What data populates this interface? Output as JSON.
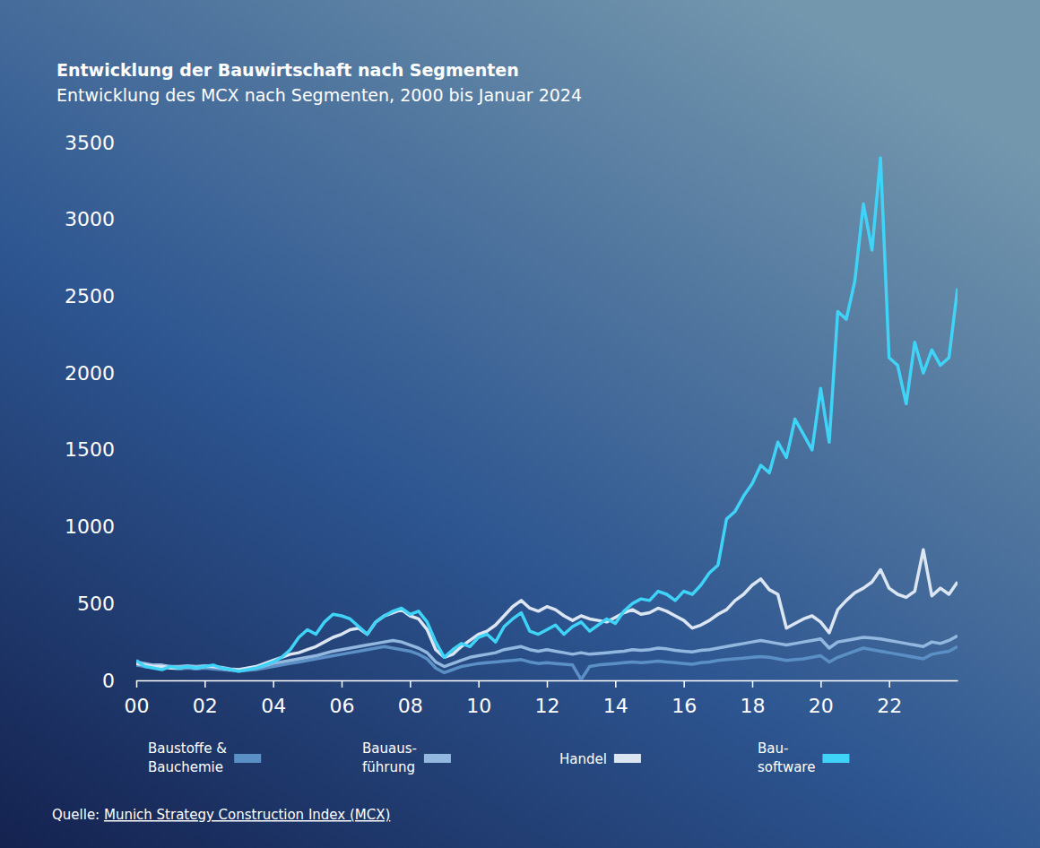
{
  "chart_data": {
    "type": "line",
    "title": "Entwicklung der Bauwirtschaft nach Segmenten",
    "subtitle": "Entwicklung des MCX nach Segmenten, 2000 bis Januar 2024",
    "source": "Quelle: Munich Strategy Construction Index (MCX)",
    "x": [
      2000,
      2000.25,
      2000.5,
      2000.75,
      2001,
      2001.25,
      2001.5,
      2001.75,
      2002,
      2002.25,
      2002.5,
      2002.75,
      2003,
      2003.25,
      2003.5,
      2003.75,
      2004,
      2004.25,
      2004.5,
      2004.75,
      2005,
      2005.25,
      2005.5,
      2005.75,
      2006,
      2006.25,
      2006.5,
      2006.75,
      2007,
      2007.25,
      2007.5,
      2007.75,
      2008,
      2008.25,
      2008.5,
      2008.75,
      2009,
      2009.25,
      2009.5,
      2009.75,
      2010,
      2010.25,
      2010.5,
      2010.75,
      2011,
      2011.25,
      2011.5,
      2011.75,
      2012,
      2012.25,
      2012.5,
      2012.75,
      2013,
      2013.25,
      2013.5,
      2013.75,
      2014,
      2014.25,
      2014.5,
      2014.75,
      2015,
      2015.25,
      2015.5,
      2015.75,
      2016,
      2016.25,
      2016.5,
      2016.75,
      2017,
      2017.25,
      2017.5,
      2017.75,
      2018,
      2018.25,
      2018.5,
      2018.75,
      2019,
      2019.25,
      2019.5,
      2019.75,
      2020,
      2020.25,
      2020.5,
      2020.75,
      2021,
      2021.25,
      2021.5,
      2021.75,
      2022,
      2022.25,
      2022.5,
      2022.75,
      2023,
      2023.25,
      2023.5,
      2023.75,
      2024
    ],
    "xlim": [
      2000,
      2024
    ],
    "xticks": [
      {
        "value": 2000,
        "label": "00"
      },
      {
        "value": 2002,
        "label": "02"
      },
      {
        "value": 2004,
        "label": "04"
      },
      {
        "value": 2006,
        "label": "06"
      },
      {
        "value": 2008,
        "label": "08"
      },
      {
        "value": 2010,
        "label": "10"
      },
      {
        "value": 2012,
        "label": "12"
      },
      {
        "value": 2014,
        "label": "14"
      },
      {
        "value": 2016,
        "label": "16"
      },
      {
        "value": 2018,
        "label": "18"
      },
      {
        "value": 2020,
        "label": "20"
      },
      {
        "value": 2022,
        "label": "22"
      }
    ],
    "ylim": [
      0,
      3500
    ],
    "yticks": [
      0,
      500,
      1000,
      1500,
      2000,
      2500,
      3000,
      3500
    ],
    "grid": false,
    "legend": "bottom",
    "series": [
      {
        "name": "Baustoffe &\nBauchemie",
        "color": "#5b90c6",
        "values": [
          100,
          90,
          85,
          80,
          80,
          75,
          80,
          75,
          80,
          75,
          70,
          65,
          60,
          65,
          70,
          80,
          90,
          100,
          110,
          120,
          130,
          140,
          150,
          160,
          170,
          180,
          190,
          200,
          210,
          220,
          210,
          200,
          190,
          170,
          140,
          80,
          50,
          70,
          90,
          100,
          110,
          115,
          120,
          125,
          130,
          135,
          120,
          110,
          115,
          110,
          105,
          100,
          5,
          90,
          100,
          105,
          110,
          115,
          120,
          115,
          120,
          125,
          120,
          115,
          110,
          105,
          115,
          120,
          130,
          135,
          140,
          145,
          150,
          155,
          150,
          140,
          130,
          135,
          140,
          150,
          160,
          120,
          150,
          170,
          190,
          210,
          200,
          190,
          180,
          170,
          160,
          150,
          140,
          170,
          180,
          190,
          220
        ]
      },
      {
        "name": "Bauaus-\nführung",
        "color": "#92b8df",
        "values": [
          120,
          110,
          100,
          100,
          90,
          90,
          95,
          90,
          95,
          90,
          85,
          75,
          70,
          75,
          80,
          95,
          110,
          120,
          130,
          140,
          150,
          160,
          175,
          190,
          200,
          210,
          220,
          230,
          240,
          250,
          260,
          250,
          230,
          210,
          180,
          120,
          90,
          110,
          130,
          150,
          160,
          170,
          180,
          200,
          210,
          220,
          200,
          190,
          200,
          190,
          180,
          170,
          180,
          170,
          175,
          180,
          185,
          190,
          200,
          195,
          200,
          210,
          205,
          195,
          190,
          185,
          195,
          200,
          210,
          220,
          230,
          240,
          250,
          260,
          250,
          240,
          230,
          240,
          250,
          260,
          270,
          210,
          250,
          260,
          270,
          280,
          275,
          270,
          260,
          250,
          240,
          230,
          220,
          250,
          240,
          260,
          290
        ]
      },
      {
        "name": "Handel",
        "color": "#dce6f3",
        "values": [
          110,
          100,
          90,
          90,
          80,
          80,
          90,
          80,
          90,
          90,
          80,
          70,
          70,
          80,
          90,
          110,
          130,
          150,
          170,
          180,
          200,
          220,
          250,
          280,
          300,
          330,
          340,
          300,
          380,
          420,
          440,
          460,
          420,
          400,
          330,
          200,
          150,
          170,
          220,
          260,
          300,
          320,
          360,
          420,
          480,
          520,
          470,
          450,
          480,
          460,
          420,
          390,
          420,
          400,
          390,
          380,
          410,
          440,
          460,
          430,
          440,
          470,
          450,
          420,
          390,
          340,
          360,
          390,
          430,
          460,
          520,
          560,
          620,
          660,
          590,
          560,
          340,
          370,
          400,
          420,
          380,
          310,
          460,
          520,
          570,
          600,
          640,
          720,
          600,
          560,
          540,
          580,
          850,
          550,
          600,
          560,
          640
        ]
      },
      {
        "name": "Bau-\nsoftware",
        "color": "#3fd3f7",
        "values": [
          130,
          90,
          80,
          70,
          90,
          80,
          90,
          80,
          90,
          100,
          80,
          70,
          60,
          70,
          80,
          100,
          120,
          150,
          200,
          280,
          330,
          300,
          380,
          430,
          420,
          400,
          350,
          300,
          380,
          420,
          450,
          470,
          430,
          450,
          380,
          250,
          150,
          200,
          240,
          220,
          280,
          300,
          250,
          350,
          400,
          440,
          320,
          300,
          330,
          360,
          300,
          350,
          380,
          320,
          360,
          400,
          370,
          450,
          500,
          530,
          520,
          580,
          560,
          520,
          580,
          560,
          620,
          700,
          750,
          1050,
          1100,
          1200,
          1280,
          1400,
          1350,
          1550,
          1450,
          1700,
          1600,
          1500,
          1900,
          1550,
          2400,
          2350,
          2600,
          3100,
          2800,
          3400,
          2100,
          2050,
          1800,
          2200,
          2000,
          2150,
          2050,
          2100,
          2550
        ]
      }
    ]
  }
}
